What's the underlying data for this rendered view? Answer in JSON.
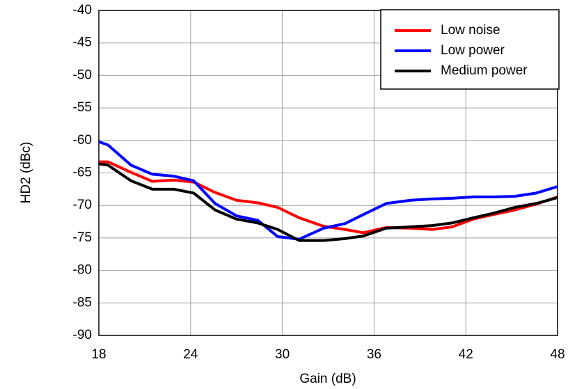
{
  "chart_data": {
    "type": "line",
    "x_label": "Gain (dB)",
    "y_label": "HD2 (dBc)",
    "x": [
      18,
      18.6,
      20.1,
      21.5,
      22.9,
      24.2,
      25.6,
      27.0,
      28.4,
      29.7,
      31.1,
      32.7,
      34.1,
      35.3,
      36.8,
      38.4,
      39.8,
      41.1,
      42.5,
      43.8,
      45.2,
      46.6,
      48
    ],
    "series": [
      {
        "name": "Low noise",
        "color": "#ff0000",
        "values": [
          -63.3,
          -63.3,
          -64.9,
          -66.3,
          -66.1,
          -66.4,
          -68.0,
          -69.2,
          -69.6,
          -70.3,
          -71.9,
          -73.2,
          -73.7,
          -74.2,
          -73.4,
          -73.5,
          -73.7,
          -73.3,
          -72.1,
          -71.4,
          -70.7,
          -69.8,
          -68.7
        ]
      },
      {
        "name": "Low power",
        "color": "#0000ff",
        "values": [
          -60.2,
          -60.7,
          -63.8,
          -65.2,
          -65.5,
          -66.2,
          -69.7,
          -71.6,
          -72.3,
          -74.8,
          -75.2,
          -73.5,
          -72.8,
          -71.4,
          -69.7,
          -69.2,
          -69.0,
          -68.9,
          -68.7,
          -68.7,
          -68.6,
          -68.1,
          -67.1
        ]
      },
      {
        "name": "Medium power",
        "color": "#000000",
        "values": [
          -63.6,
          -63.8,
          -66.2,
          -67.5,
          -67.5,
          -68.1,
          -70.7,
          -72.1,
          -72.7,
          -73.7,
          -75.4,
          -75.4,
          -75.1,
          -74.7,
          -73.5,
          -73.3,
          -73.1,
          -72.7,
          -71.9,
          -71.2,
          -70.3,
          -69.7,
          -68.8
        ]
      }
    ],
    "xlim": [
      18,
      48
    ],
    "xticks": [
      18,
      24,
      30,
      36,
      42,
      48
    ],
    "ylim": [
      -90,
      -40
    ],
    "yticks": [
      -40,
      -45,
      -50,
      -55,
      -60,
      -65,
      -70,
      -75,
      -80,
      -85,
      -90
    ],
    "grid": true,
    "legend": "upper right"
  }
}
